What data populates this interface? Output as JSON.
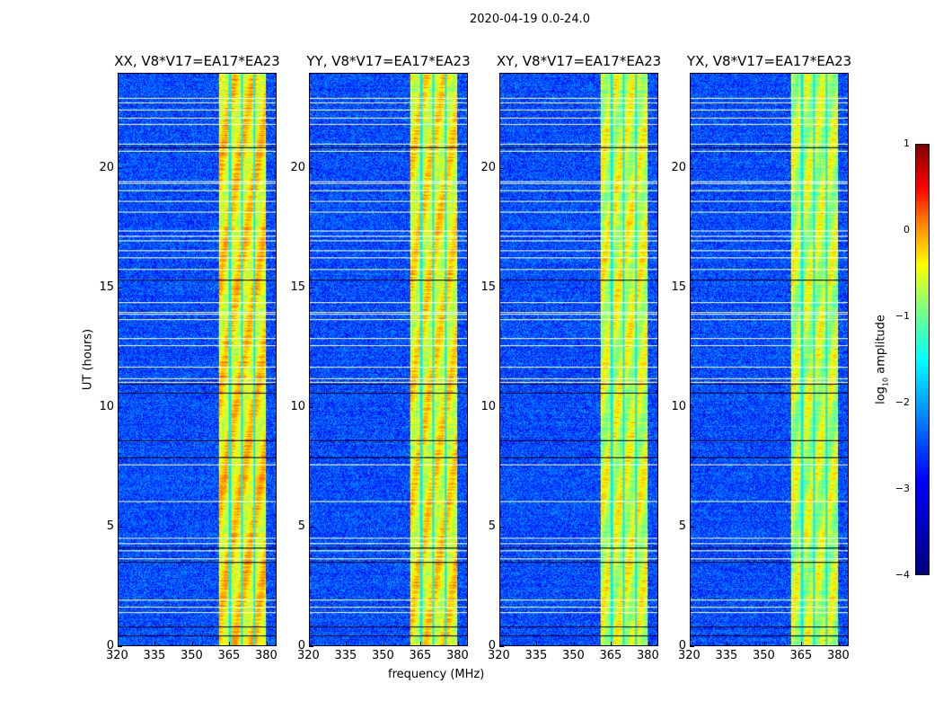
{
  "suptitle": "2020-04-19 0.0-24.0",
  "chart_data": {
    "type": "heatmap",
    "title": "2020-04-19 0.0-24.0",
    "xlabel": "frequency (MHz)",
    "ylabel": "UT (hours)",
    "xlim": [
      320,
      384
    ],
    "ylim": [
      0,
      24
    ],
    "xticks": [
      320,
      335,
      350,
      365,
      380
    ],
    "yticks": [
      0,
      5,
      10,
      15,
      20
    ],
    "panels": [
      {
        "title": "XX, V8*V17=EA17*EA23",
        "band_level": -0.8
      },
      {
        "title": "YY, V8*V17=EA17*EA23",
        "band_level": -0.9
      },
      {
        "title": "XY, V8*V17=EA17*EA23",
        "band_level": -1.1
      },
      {
        "title": "YX, V8*V17=EA17*EA23",
        "band_level": -1.2
      }
    ],
    "rfi_band_mhz": [
      360.5,
      380
    ],
    "rfi_band_gaps_mhz": [
      365.2,
      370.1,
      375.0
    ],
    "background_level": -3.0,
    "flagged_ut_hours": [
      23.0,
      22.8,
      22.5,
      22.15,
      21.9,
      21.05,
      20.75,
      19.5,
      19.4,
      19.1,
      18.65,
      18.2,
      17.4,
      17.2,
      17.0,
      16.6,
      16.3,
      15.8,
      14.4,
      14.0,
      13.9,
      13.7,
      12.9,
      12.6,
      11.7,
      11.2,
      11.05,
      7.6,
      6.05,
      4.5,
      4.3,
      4.0,
      3.65,
      1.9,
      1.6,
      1.38
    ],
    "dropout_ut_hours": [
      20.9,
      15.35,
      11.0,
      10.6,
      8.6,
      7.9,
      4.1,
      3.5,
      0.8,
      0.4
    ],
    "colorbar": {
      "label": "log10 amplitude",
      "label_main": "log",
      "label_sub": "10",
      "label_rest": " amplitude",
      "range": [
        -4,
        1
      ],
      "ticks": [
        "1",
        "0",
        "−1",
        "−2",
        "−3",
        "−4"
      ],
      "tick_values": [
        1,
        0,
        -1,
        -2,
        -3,
        -4
      ],
      "colormap": "jet"
    }
  }
}
